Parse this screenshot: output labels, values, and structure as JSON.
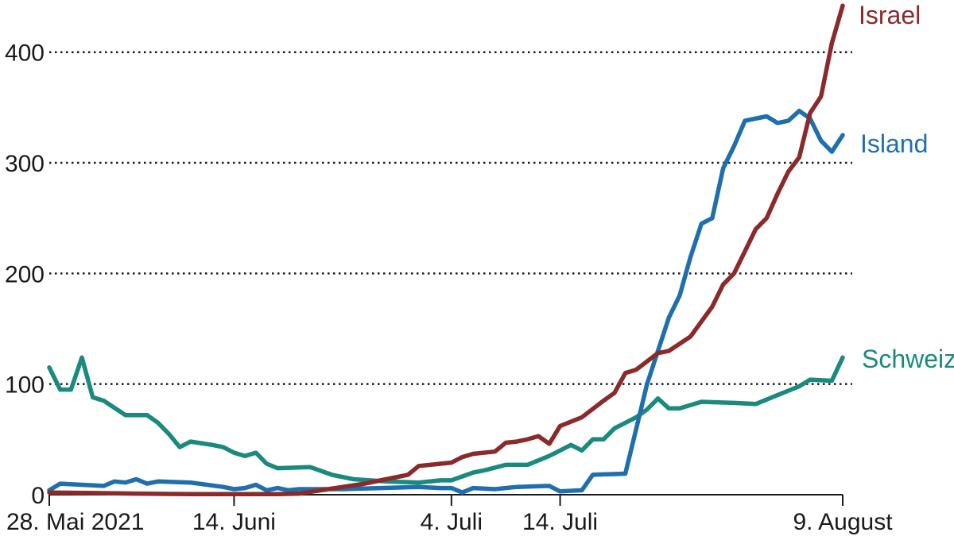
{
  "chart_data": {
    "type": "line",
    "title": "",
    "xlabel": "",
    "ylabel": "",
    "x_range": [
      "2021-05-28",
      "2021-08-09"
    ],
    "ylim": [
      0,
      440
    ],
    "grid": true,
    "legend": "inline labels at line ends, right",
    "y_ticks": [
      {
        "value": 0,
        "label": "0"
      },
      {
        "value": 100,
        "label": "100"
      },
      {
        "value": 200,
        "label": "200"
      },
      {
        "value": 300,
        "label": "300"
      },
      {
        "value": 400,
        "label": "400"
      }
    ],
    "x_ticks": [
      {
        "date": "2021-05-28",
        "label": "28. Mai 2021"
      },
      {
        "date": "2021-06-14",
        "label": "14. Juni"
      },
      {
        "date": "2021-07-04",
        "label": "4. Juli"
      },
      {
        "date": "2021-07-14",
        "label": "14. Juli"
      },
      {
        "date": "2021-08-09",
        "label": "9. August"
      }
    ],
    "series": [
      {
        "name": "Israel",
        "color": "#8b2a2a",
        "points": [
          [
            "2021-05-28",
            2
          ],
          [
            "2021-06-01",
            1.5
          ],
          [
            "2021-06-05",
            1
          ],
          [
            "2021-06-10",
            0.5
          ],
          [
            "2021-06-14",
            0.5
          ],
          [
            "2021-06-18",
            0.5
          ],
          [
            "2021-06-20",
            1
          ],
          [
            "2021-06-22",
            4
          ],
          [
            "2021-06-24",
            7
          ],
          [
            "2021-06-26",
            10
          ],
          [
            "2021-06-28",
            14
          ],
          [
            "2021-06-30",
            18
          ],
          [
            "2021-07-01",
            26
          ],
          [
            "2021-07-03",
            28
          ],
          [
            "2021-07-04",
            29
          ],
          [
            "2021-07-05",
            34
          ],
          [
            "2021-07-06",
            37
          ],
          [
            "2021-07-08",
            39
          ],
          [
            "2021-07-09",
            47
          ],
          [
            "2021-07-10",
            48
          ],
          [
            "2021-07-11",
            50
          ],
          [
            "2021-07-12",
            53
          ],
          [
            "2021-07-13",
            46
          ],
          [
            "2021-07-14",
            62
          ],
          [
            "2021-07-16",
            70
          ],
          [
            "2021-07-18",
            85
          ],
          [
            "2021-07-19",
            92
          ],
          [
            "2021-07-20",
            110
          ],
          [
            "2021-07-21",
            113
          ],
          [
            "2021-07-23",
            128
          ],
          [
            "2021-07-24",
            130
          ],
          [
            "2021-07-26",
            143
          ],
          [
            "2021-07-28",
            170
          ],
          [
            "2021-07-29",
            190
          ],
          [
            "2021-07-30",
            200
          ],
          [
            "2021-07-31",
            220
          ],
          [
            "2021-08-01",
            240
          ],
          [
            "2021-08-02",
            250
          ],
          [
            "2021-08-03",
            272
          ],
          [
            "2021-08-04",
            292
          ],
          [
            "2021-08-05",
            305
          ],
          [
            "2021-08-06",
            345
          ],
          [
            "2021-08-07",
            360
          ],
          [
            "2021-08-08",
            408
          ],
          [
            "2021-08-09",
            442
          ]
        ]
      },
      {
        "name": "Island",
        "color": "#1f6fae",
        "points": [
          [
            "2021-05-28",
            4
          ],
          [
            "2021-05-29",
            10
          ],
          [
            "2021-05-31",
            9
          ],
          [
            "2021-06-02",
            8
          ],
          [
            "2021-06-03",
            12
          ],
          [
            "2021-06-04",
            11
          ],
          [
            "2021-06-05",
            14
          ],
          [
            "2021-06-06",
            10
          ],
          [
            "2021-06-07",
            12
          ],
          [
            "2021-06-10",
            11
          ],
          [
            "2021-06-13",
            7
          ],
          [
            "2021-06-14",
            5
          ],
          [
            "2021-06-15",
            6
          ],
          [
            "2021-06-16",
            9
          ],
          [
            "2021-06-17",
            4
          ],
          [
            "2021-06-18",
            6
          ],
          [
            "2021-06-19",
            4
          ],
          [
            "2021-06-20",
            5
          ],
          [
            "2021-06-24",
            5
          ],
          [
            "2021-07-01",
            7
          ],
          [
            "2021-07-03",
            6
          ],
          [
            "2021-07-04",
            6
          ],
          [
            "2021-07-05",
            2
          ],
          [
            "2021-07-06",
            6
          ],
          [
            "2021-07-08",
            5
          ],
          [
            "2021-07-10",
            7
          ],
          [
            "2021-07-13",
            8
          ],
          [
            "2021-07-14",
            3
          ],
          [
            "2021-07-16",
            4
          ],
          [
            "2021-07-17",
            18
          ],
          [
            "2021-07-20",
            19
          ],
          [
            "2021-07-22",
            100
          ],
          [
            "2021-07-24",
            160
          ],
          [
            "2021-07-25",
            180
          ],
          [
            "2021-07-26",
            215
          ],
          [
            "2021-07-27",
            245
          ],
          [
            "2021-07-28",
            250
          ],
          [
            "2021-07-29",
            295
          ],
          [
            "2021-07-30",
            315
          ],
          [
            "2021-07-31",
            338
          ],
          [
            "2021-08-02",
            342
          ],
          [
            "2021-08-03",
            336
          ],
          [
            "2021-08-04",
            338
          ],
          [
            "2021-08-05",
            347
          ],
          [
            "2021-08-06",
            340
          ],
          [
            "2021-08-07",
            320
          ],
          [
            "2021-08-08",
            310
          ],
          [
            "2021-08-09",
            325
          ]
        ]
      },
      {
        "name": "Schweiz",
        "color": "#1a8a7e",
        "points": [
          [
            "2021-05-28",
            115
          ],
          [
            "2021-05-29",
            95
          ],
          [
            "2021-05-30",
            95
          ],
          [
            "2021-05-31",
            124
          ],
          [
            "2021-06-01",
            88
          ],
          [
            "2021-06-02",
            85
          ],
          [
            "2021-06-04",
            72
          ],
          [
            "2021-06-06",
            72
          ],
          [
            "2021-06-07",
            65
          ],
          [
            "2021-06-08",
            55
          ],
          [
            "2021-06-09",
            43
          ],
          [
            "2021-06-10",
            48
          ],
          [
            "2021-06-12",
            45
          ],
          [
            "2021-06-13",
            43
          ],
          [
            "2021-06-14",
            38
          ],
          [
            "2021-06-15",
            35
          ],
          [
            "2021-06-16",
            38
          ],
          [
            "2021-06-17",
            28
          ],
          [
            "2021-06-18",
            24
          ],
          [
            "2021-06-21",
            25
          ],
          [
            "2021-06-23",
            18
          ],
          [
            "2021-06-25",
            14
          ],
          [
            "2021-06-28",
            12
          ],
          [
            "2021-07-01",
            11
          ],
          [
            "2021-07-03",
            13
          ],
          [
            "2021-07-04",
            13
          ],
          [
            "2021-07-06",
            20
          ],
          [
            "2021-07-07",
            22
          ],
          [
            "2021-07-09",
            27
          ],
          [
            "2021-07-11",
            27
          ],
          [
            "2021-07-13",
            35
          ],
          [
            "2021-07-14",
            40
          ],
          [
            "2021-07-15",
            45
          ],
          [
            "2021-07-16",
            40
          ],
          [
            "2021-07-17",
            50
          ],
          [
            "2021-07-18",
            50
          ],
          [
            "2021-07-19",
            60
          ],
          [
            "2021-07-20",
            65
          ],
          [
            "2021-07-21",
            70
          ],
          [
            "2021-07-22",
            77
          ],
          [
            "2021-07-23",
            87
          ],
          [
            "2021-07-24",
            78
          ],
          [
            "2021-07-25",
            78
          ],
          [
            "2021-07-27",
            84
          ],
          [
            "2021-07-30",
            83
          ],
          [
            "2021-08-01",
            82
          ],
          [
            "2021-08-03",
            90
          ],
          [
            "2021-08-05",
            98
          ],
          [
            "2021-08-06",
            104
          ],
          [
            "2021-08-08",
            103
          ],
          [
            "2021-08-09",
            124
          ]
        ]
      }
    ]
  }
}
